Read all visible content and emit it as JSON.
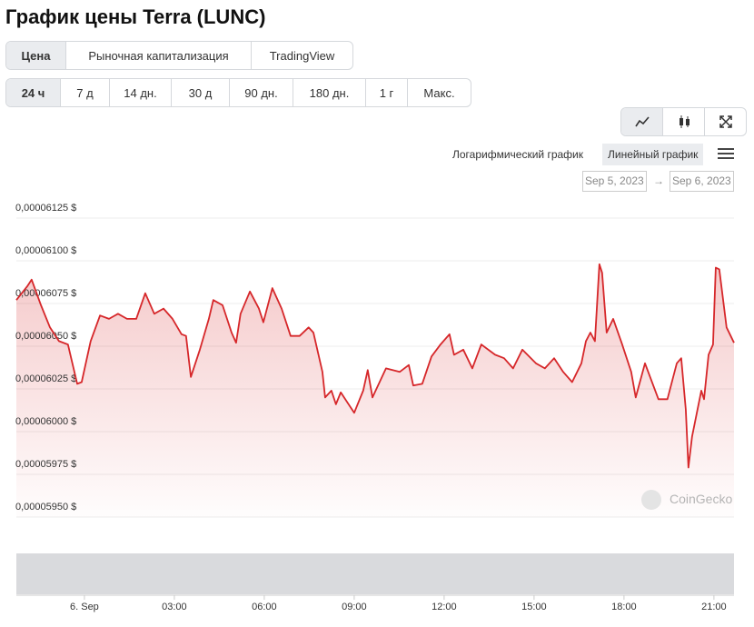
{
  "header": {
    "title": "График цены Terra (LUNC)"
  },
  "tabs": [
    "Цена",
    "Рыночная капитализация",
    "TradingView"
  ],
  "ranges": [
    "24 ч",
    "7 д",
    "14 дн.",
    "30 д",
    "90 дн.",
    "180 дн.",
    "1 г",
    "Макс."
  ],
  "scale_options": [
    "Логарифмический график",
    "Линейный график"
  ],
  "date_range": {
    "from": "Sep 5, 2023",
    "separator": "→",
    "to": "Sep 6, 2023"
  },
  "watermark": "CoinGecko",
  "chart_data": {
    "type": "area",
    "color": "#d6272a",
    "grid": true,
    "x": [
      -2.27,
      -1.91,
      -1.76,
      -1.45,
      -1.15,
      -0.85,
      -0.55,
      -0.24,
      -0.09,
      0.21,
      0.52,
      0.82,
      1.12,
      1.42,
      1.73,
      2.03,
      2.33,
      2.64,
      2.94,
      3.24,
      3.39,
      3.55,
      3.85,
      4.15,
      4.3,
      4.61,
      4.91,
      5.06,
      5.21,
      5.52,
      5.82,
      5.97,
      6.27,
      6.58,
      6.88,
      7.18,
      7.48,
      7.64,
      7.94,
      8.03,
      8.24,
      8.39,
      8.55,
      9.0,
      9.3,
      9.45,
      9.61,
      10.06,
      10.52,
      10.82,
      10.97,
      11.27,
      11.58,
      11.88,
      12.18,
      12.33,
      12.64,
      12.94,
      13.24,
      13.7,
      14.0,
      14.3,
      14.61,
      15.06,
      15.36,
      15.67,
      15.97,
      16.27,
      16.58,
      16.73,
      16.88,
      17.03,
      17.18,
      17.27,
      17.42,
      17.64,
      17.94,
      18.24,
      18.39,
      18.7,
      19.15,
      19.45,
      19.76,
      19.91,
      20.06,
      20.15,
      20.27,
      20.58,
      20.67,
      20.82,
      20.97,
      21.06,
      21.18,
      21.42,
      21.67
    ],
    "values": [
      6.077e-05,
      6.085e-05,
      6.089e-05,
      6.074e-05,
      6.061e-05,
      6.053e-05,
      6.051e-05,
      6.028e-05,
      6.029e-05,
      6.053e-05,
      6.068e-05,
      6.066e-05,
      6.069e-05,
      6.066e-05,
      6.066e-05,
      6.081e-05,
      6.069e-05,
      6.072e-05,
      6.066e-05,
      6.057e-05,
      6.056e-05,
      6.032e-05,
      6.048e-05,
      6.066e-05,
      6.077e-05,
      6.074e-05,
      6.058e-05,
      6.052e-05,
      6.069e-05,
      6.082e-05,
      6.072e-05,
      6.064e-05,
      6.084e-05,
      6.072e-05,
      6.056e-05,
      6.056e-05,
      6.061e-05,
      6.058e-05,
      6.035e-05,
      6.02e-05,
      6.024e-05,
      6.016e-05,
      6.023e-05,
      6.011e-05,
      6.024e-05,
      6.036e-05,
      6.02e-05,
      6.037e-05,
      6.035e-05,
      6.039e-05,
      6.027e-05,
      6.028e-05,
      6.044e-05,
      6.051e-05,
      6.057e-05,
      6.045e-05,
      6.048e-05,
      6.037e-05,
      6.051e-05,
      6.045e-05,
      6.043e-05,
      6.037e-05,
      6.048e-05,
      6.04e-05,
      6.037e-05,
      6.043e-05,
      6.035e-05,
      6.029e-05,
      6.04e-05,
      6.053e-05,
      6.058e-05,
      6.053e-05,
      6.098e-05,
      6.093e-05,
      6.058e-05,
      6.066e-05,
      6.051e-05,
      6.035e-05,
      6.02e-05,
      6.04e-05,
      6.019e-05,
      6.019e-05,
      6.04e-05,
      6.043e-05,
      6.013e-05,
      5.979e-05,
      5.997e-05,
      6.024e-05,
      6.019e-05,
      6.045e-05,
      6.051e-05,
      6.096e-05,
      6.095e-05,
      6.061e-05,
      6.052e-05
    ],
    "xlim": [
      -2.27,
      21.67
    ],
    "ylim": [
      5.95e-05,
      6.125e-05
    ],
    "xticks": [
      {
        "value": 0,
        "label": "6. Sep"
      },
      {
        "value": 3,
        "label": "03:00"
      },
      {
        "value": 6,
        "label": "06:00"
      },
      {
        "value": 9,
        "label": "09:00"
      },
      {
        "value": 12,
        "label": "12:00"
      },
      {
        "value": 15,
        "label": "15:00"
      },
      {
        "value": 18,
        "label": "18:00"
      },
      {
        "value": 21,
        "label": "21:00"
      }
    ],
    "yticks": [
      {
        "value": 5.95e-05,
        "label": "0,00005950 $"
      },
      {
        "value": 5.975e-05,
        "label": "0,00005975 $"
      },
      {
        "value": 6e-05,
        "label": "0,00006000 $"
      },
      {
        "value": 6.025e-05,
        "label": "0,00006025 $"
      },
      {
        "value": 6.05e-05,
        "label": "0,00006050 $"
      },
      {
        "value": 6.075e-05,
        "label": "0,00006075 $"
      },
      {
        "value": 6.1e-05,
        "label": "0,00006100 $"
      },
      {
        "value": 6.125e-05,
        "label": "0,00006125 $"
      }
    ]
  }
}
